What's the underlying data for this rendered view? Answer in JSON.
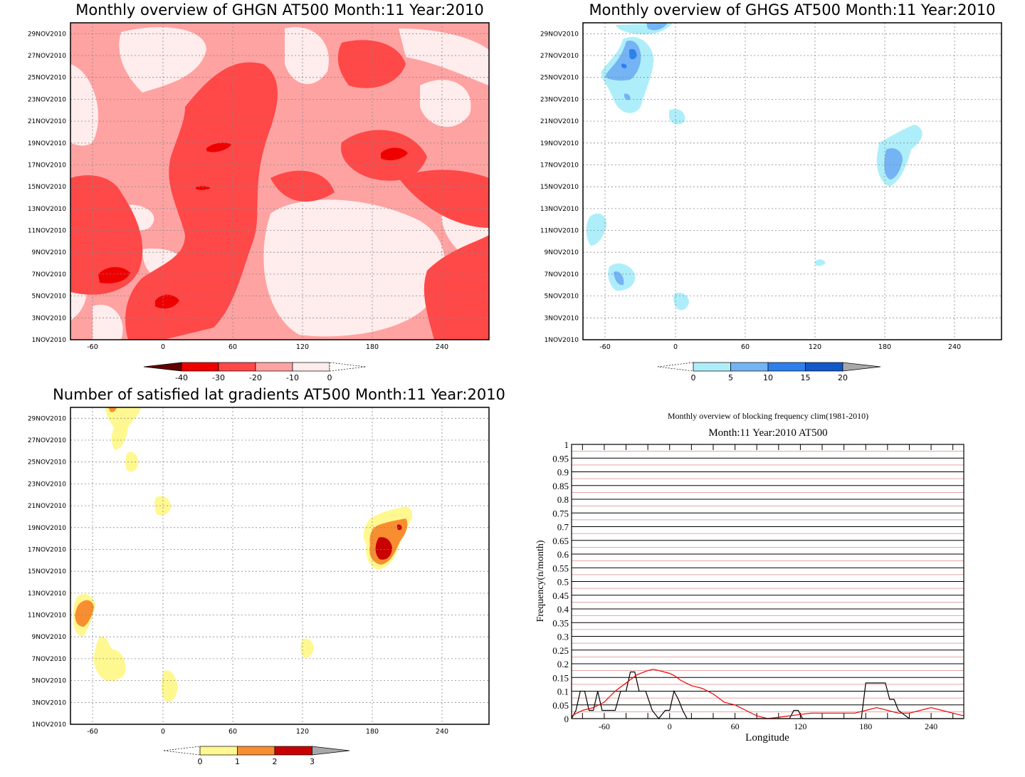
{
  "dates": [
    "1NOV2010",
    "3NOV2010",
    "5NOV2010",
    "7NOV2010",
    "9NOV2010",
    "11NOV2010",
    "13NOV2010",
    "15NOV2010",
    "17NOV2010",
    "19NOV2010",
    "21NOV2010",
    "23NOV2010",
    "25NOV2010",
    "27NOV2010",
    "29NOV2010"
  ],
  "lon_ticks": [
    "-60",
    "0",
    "60",
    "120",
    "180",
    "240"
  ],
  "chart_data": [
    {
      "type": "heatmap",
      "title": "Monthly overview of GHGN AT500 Month:11 Year:2010",
      "xlim": [
        -90,
        272
      ],
      "ylim": [
        "1NOV2010",
        "30NOV2010"
      ],
      "grid": true,
      "colorbar": {
        "ticks": [
          "-40",
          "-30",
          "-20",
          "-10",
          "0"
        ],
        "colors": [
          "#600000",
          "#ee0000",
          "#ff4848",
          "#ffa2a2",
          "#ffecec",
          "#ffffff"
        ]
      }
    },
    {
      "type": "heatmap",
      "title": "Monthly overview of GHGS AT500 Month:11 Year:2010",
      "xlim": [
        -90,
        272
      ],
      "ylim": [
        "1NOV2010",
        "30NOV2010"
      ],
      "grid": true,
      "colorbar": {
        "ticks": [
          "0",
          "5",
          "10",
          "15",
          "20"
        ],
        "colors": [
          "#ffffff",
          "#aeeefa",
          "#74b4f4",
          "#2e80ec",
          "#1358c8",
          "#a8a8a8"
        ]
      }
    },
    {
      "type": "heatmap",
      "title": "Number of satisfied lat gradients AT500 Month:11 Year:2010",
      "xlim": [
        -90,
        272
      ],
      "ylim": [
        "1NOV2010",
        "30NOV2010"
      ],
      "grid": true,
      "colorbar": {
        "ticks": [
          "0",
          "1",
          "2",
          "3"
        ],
        "colors": [
          "#ffffff",
          "#fff890",
          "#f88e30",
          "#c80000",
          "#a8a8a8"
        ]
      }
    },
    {
      "type": "line",
      "title": "Monthly overview of blocking frequency clim(1981-2010)",
      "subtitle": "Month:11 Year:2010  AT500",
      "xlabel": "Longitude",
      "ylabel": "Frequency(n/month)",
      "xlim": [
        -90,
        270
      ],
      "ylim": [
        0,
        1
      ],
      "x_ticks": [
        "-60",
        "0",
        "60",
        "120",
        "180",
        "240"
      ],
      "y_ticks": [
        "0",
        "0.05",
        "0.1",
        "0.15",
        "0.2",
        "0.25",
        "0.3",
        "0.35",
        "0.4",
        "0.45",
        "0.5",
        "0.55",
        "0.6",
        "0.65",
        "0.7",
        "0.75",
        "0.8",
        "0.85",
        "0.9",
        "0.95",
        "1"
      ],
      "series": [
        {
          "color": "#000000",
          "x": [
            -90,
            -86,
            -82,
            -78,
            -74,
            -70,
            -66,
            -62,
            -56,
            -50,
            -45,
            -40,
            -36,
            -32,
            -28,
            -22,
            -16,
            -10,
            -4,
            0,
            4,
            8,
            12,
            16,
            20,
            30,
            60,
            90,
            110,
            114,
            118,
            122,
            126,
            140,
            160,
            176,
            180,
            184,
            188,
            194,
            198,
            202,
            206,
            210,
            220,
            240,
            270
          ],
          "y": [
            0,
            0.03,
            0.1,
            0.1,
            0.03,
            0.03,
            0.1,
            0.03,
            0.03,
            0.03,
            0.1,
            0.1,
            0.17,
            0.17,
            0.1,
            0.1,
            0.03,
            0,
            0.03,
            0.03,
            0.1,
            0.07,
            0.03,
            0,
            0,
            0,
            0,
            0,
            0,
            0.03,
            0.03,
            0,
            0,
            0,
            0,
            0,
            0.13,
            0.13,
            0.13,
            0.13,
            0.13,
            0.07,
            0.07,
            0.03,
            0,
            0,
            0
          ]
        },
        {
          "color": "#ee0000",
          "x": [
            -90,
            -80,
            -70,
            -60,
            -50,
            -40,
            -30,
            -20,
            -15,
            -10,
            -5,
            0,
            5,
            10,
            20,
            30,
            40,
            50,
            60,
            70,
            80,
            90,
            100,
            110,
            120,
            130,
            140,
            150,
            160,
            170,
            180,
            190,
            200,
            210,
            220,
            230,
            240,
            250,
            260,
            270
          ],
          "y": [
            0.01,
            0.03,
            0.04,
            0.06,
            0.1,
            0.13,
            0.16,
            0.175,
            0.18,
            0.175,
            0.17,
            0.165,
            0.155,
            0.14,
            0.12,
            0.11,
            0.09,
            0.06,
            0.05,
            0.03,
            0.01,
            0,
            0.005,
            0.01,
            0.015,
            0.02,
            0.02,
            0.02,
            0.02,
            0.02,
            0.03,
            0.04,
            0.03,
            0.02,
            0.02,
            0.03,
            0.04,
            0.03,
            0.02,
            0.01
          ]
        }
      ]
    }
  ]
}
